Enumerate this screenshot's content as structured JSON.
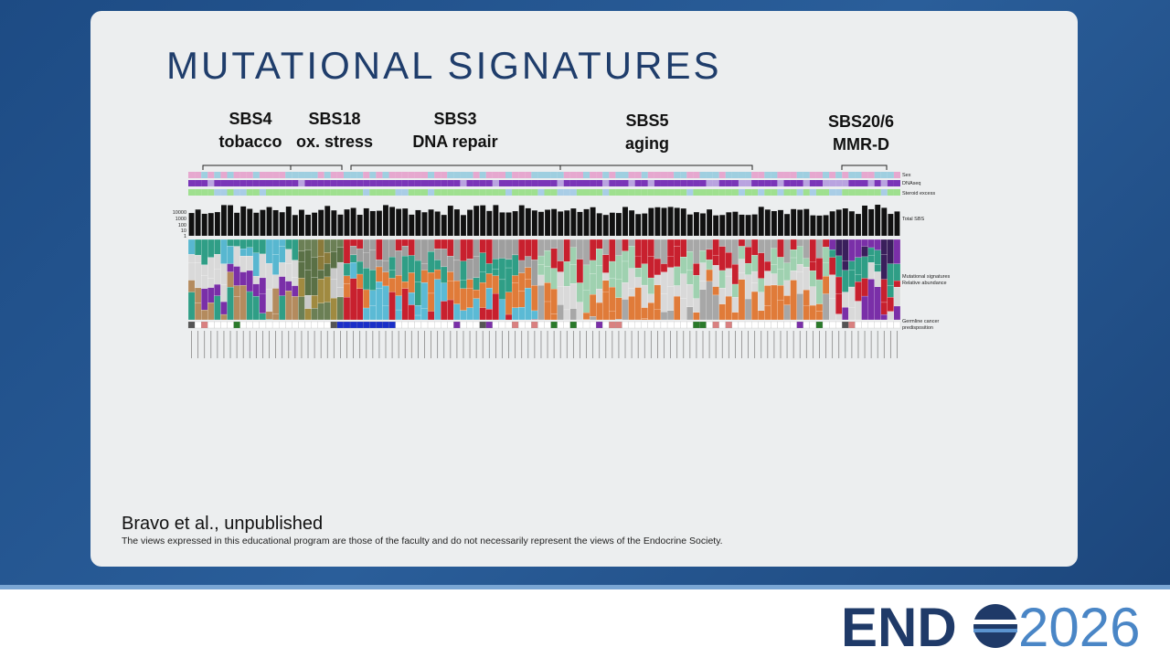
{
  "slide": {
    "title": "MUTATIONAL SIGNATURES",
    "groups": [
      {
        "name": "SBS4",
        "label": "tobacco"
      },
      {
        "name": "SBS18",
        "label": "ox. stress"
      },
      {
        "name": "SBS3",
        "label": "DNA repair"
      },
      {
        "name": "SBS5",
        "label": "aging"
      },
      {
        "name": "SBS20/6",
        "label": "MMR-D"
      }
    ],
    "figure": {
      "rows": [
        "Sex",
        "DNAseq",
        "Steroid excess",
        "Total SBS",
        "Mutational signatures",
        "Relative abundance",
        "Germline cancer",
        "predisposition"
      ],
      "total_sbs_ticks": [
        "10000",
        "1000",
        "100",
        "10",
        "1"
      ]
    },
    "citation": "Bravo et al., unpublished",
    "disclaimer": "The views expressed in this educational program are those of the faculty and do not necessarily represent the views of the Endocrine Society.",
    "logo": {
      "word": "END",
      "year": "2026"
    }
  }
}
